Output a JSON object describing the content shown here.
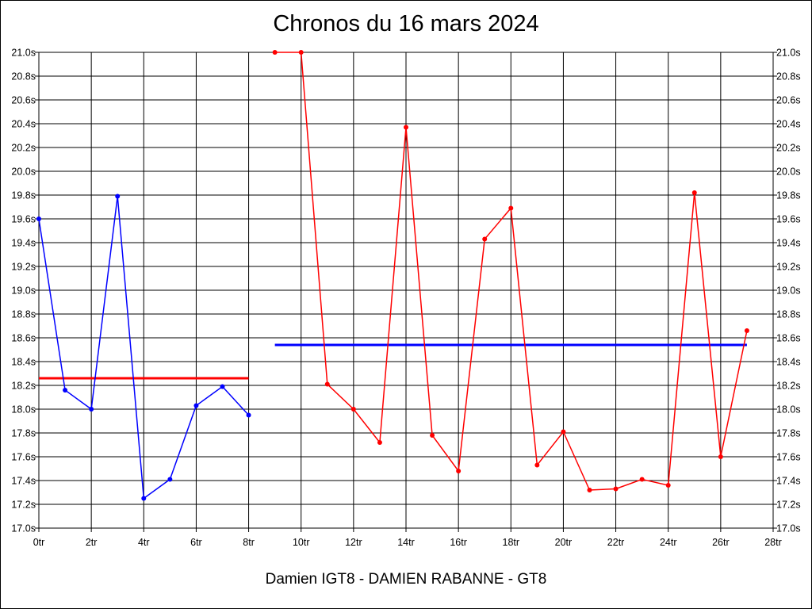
{
  "chart_data": {
    "type": "line",
    "title": "Chronos du 16 mars 2024",
    "xlabel": "Damien IGT8 - DAMIEN RABANNE - GT8",
    "ylabel": "",
    "xlim": [
      0,
      28
    ],
    "ylim": [
      17.0,
      21.0
    ],
    "grid": true,
    "xticks": [
      "0tr",
      "2tr",
      "4tr",
      "6tr",
      "8tr",
      "10tr",
      "12tr",
      "14tr",
      "16tr",
      "18tr",
      "20tr",
      "22tr",
      "24tr",
      "26tr",
      "28tr"
    ],
    "yticks": [
      "17.0s",
      "17.2s",
      "17.4s",
      "17.6s",
      "17.8s",
      "18.0s",
      "18.2s",
      "18.4s",
      "18.6s",
      "18.8s",
      "19.0s",
      "19.2s",
      "19.4s",
      "19.6s",
      "19.8s",
      "20.0s",
      "20.2s",
      "20.4s",
      "20.6s",
      "20.8s",
      "21.0s"
    ],
    "series": [
      {
        "color": "#0000ff",
        "x": [
          0,
          1,
          2,
          3,
          4,
          5,
          6,
          7,
          8
        ],
        "y": [
          19.6,
          18.16,
          18.0,
          19.79,
          17.25,
          17.41,
          18.03,
          18.19,
          17.95
        ]
      },
      {
        "color": "#ff0000",
        "x": [
          9,
          10,
          11,
          12,
          13,
          14,
          15,
          16,
          17,
          18,
          19,
          20,
          21,
          22,
          23,
          24,
          25,
          26,
          27
        ],
        "y": [
          21.0,
          21.0,
          18.21,
          18.0,
          17.72,
          20.37,
          17.78,
          17.48,
          19.43,
          19.69,
          17.53,
          17.81,
          17.32,
          17.33,
          17.41,
          17.36,
          19.82,
          17.6,
          18.66
        ]
      }
    ],
    "averages": [
      {
        "color": "#ff0000",
        "x": [
          0,
          8
        ],
        "y": 18.26
      },
      {
        "color": "#0000ff",
        "x": [
          9,
          27
        ],
        "y": 18.54
      }
    ]
  }
}
